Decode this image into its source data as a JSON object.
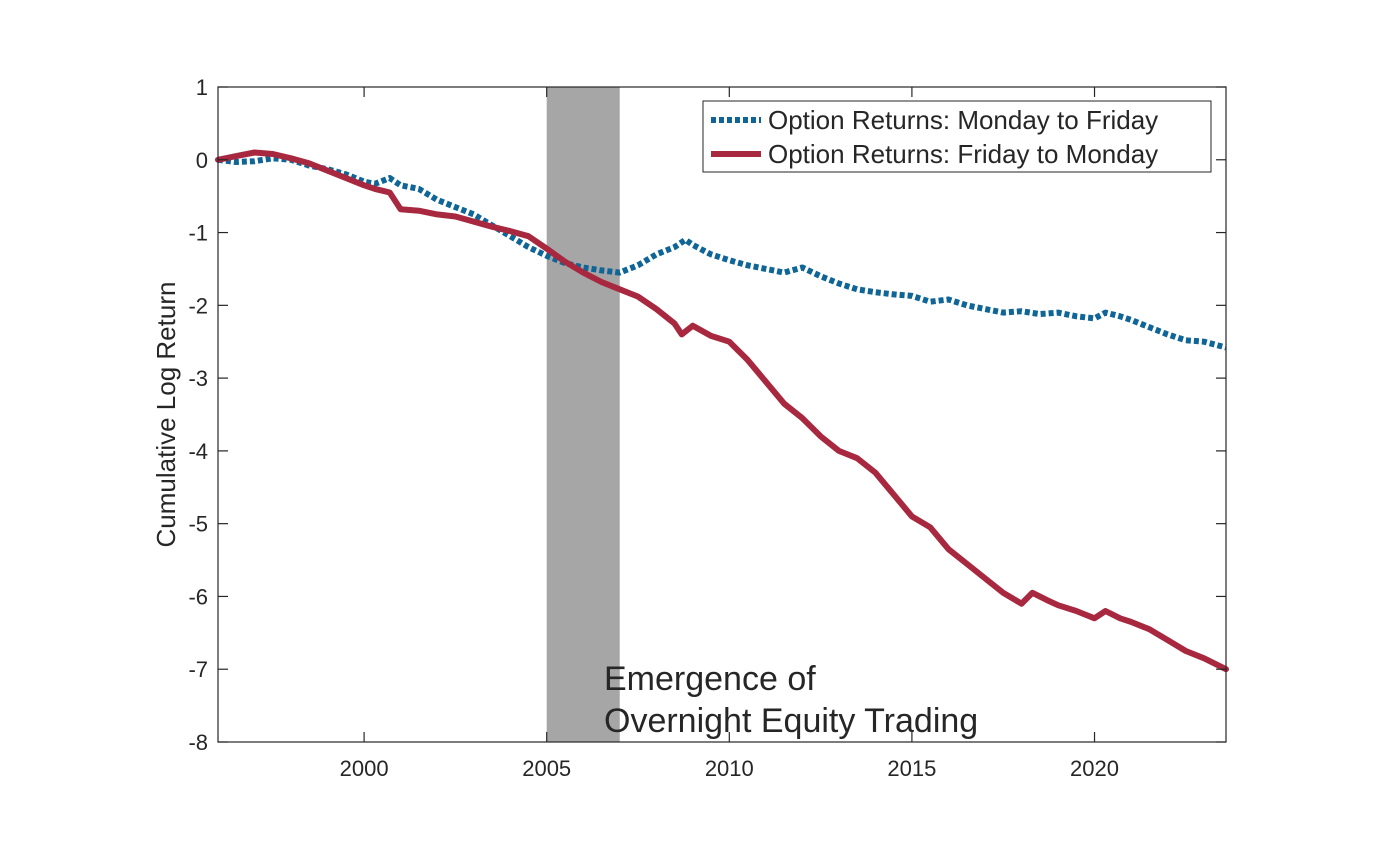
{
  "chart_data": {
    "type": "line",
    "title": "",
    "xlabel": "",
    "ylabel": "Cumulative Log Return",
    "xlim": [
      1996.0,
      2023.6
    ],
    "ylim": [
      -8,
      1
    ],
    "x_ticks": [
      2000,
      2005,
      2010,
      2015,
      2020
    ],
    "x_tick_labels": [
      "2000",
      "2005",
      "2010",
      "2015",
      "2020"
    ],
    "y_ticks": [
      1,
      0,
      -1,
      -2,
      -3,
      -4,
      -5,
      -6,
      -7,
      -8
    ],
    "y_tick_labels": [
      "1",
      "0",
      "-1",
      "-2",
      "-3",
      "-4",
      "-5",
      "-6",
      "-7",
      "-8"
    ],
    "grid": false,
    "legend_position": "top-right",
    "shaded_region": {
      "x_start": 2005.0,
      "x_end": 2007.0,
      "color": "#a6a6a6"
    },
    "annotation": {
      "lines": [
        "Emergence of",
        "Overnight Equity Trading"
      ],
      "x": 2006.6,
      "y": -7.45
    },
    "series": [
      {
        "name": "Option Returns: Monday to Friday",
        "color": "#0e6596",
        "style": "dotted",
        "x": [
          1996.0,
          1996.5,
          1997.0,
          1997.5,
          1998.0,
          1998.5,
          1999.0,
          1999.5,
          2000.0,
          2000.3,
          2000.7,
          2001.0,
          2001.5,
          2002.0,
          2002.5,
          2003.0,
          2003.5,
          2004.0,
          2004.5,
          2005.0,
          2005.5,
          2006.0,
          2006.5,
          2007.0,
          2007.5,
          2008.0,
          2008.5,
          2008.8,
          2009.0,
          2009.5,
          2010.0,
          2010.5,
          2011.0,
          2011.5,
          2012.0,
          2012.5,
          2013.0,
          2013.5,
          2014.0,
          2014.5,
          2015.0,
          2015.5,
          2016.0,
          2016.5,
          2017.0,
          2017.5,
          2018.0,
          2018.5,
          2019.0,
          2019.5,
          2020.0,
          2020.3,
          2020.7,
          2021.0,
          2021.5,
          2022.0,
          2022.5,
          2023.0,
          2023.6
        ],
        "values": [
          0.0,
          -0.03,
          -0.02,
          0.02,
          0.0,
          -0.08,
          -0.13,
          -0.2,
          -0.3,
          -0.33,
          -0.25,
          -0.35,
          -0.4,
          -0.55,
          -0.65,
          -0.75,
          -0.9,
          -1.05,
          -1.2,
          -1.32,
          -1.42,
          -1.48,
          -1.52,
          -1.55,
          -1.45,
          -1.3,
          -1.2,
          -1.1,
          -1.17,
          -1.3,
          -1.38,
          -1.45,
          -1.5,
          -1.55,
          -1.48,
          -1.6,
          -1.7,
          -1.78,
          -1.82,
          -1.85,
          -1.87,
          -1.95,
          -1.92,
          -2.0,
          -2.05,
          -2.1,
          -2.08,
          -2.12,
          -2.1,
          -2.15,
          -2.18,
          -2.1,
          -2.15,
          -2.2,
          -2.3,
          -2.4,
          -2.48,
          -2.5,
          -2.58
        ]
      },
      {
        "name": "Option Returns: Friday to Monday",
        "color": "#a8293f",
        "style": "solid",
        "x": [
          1996.0,
          1996.5,
          1997.0,
          1997.5,
          1998.0,
          1998.5,
          1999.0,
          1999.5,
          2000.0,
          2000.3,
          2000.7,
          2001.0,
          2001.5,
          2002.0,
          2002.5,
          2003.0,
          2003.5,
          2004.0,
          2004.5,
          2005.0,
          2005.5,
          2006.0,
          2006.5,
          2007.0,
          2007.5,
          2008.0,
          2008.5,
          2008.7,
          2009.0,
          2009.5,
          2010.0,
          2010.5,
          2011.0,
          2011.5,
          2012.0,
          2012.5,
          2013.0,
          2013.5,
          2014.0,
          2014.5,
          2015.0,
          2015.5,
          2016.0,
          2016.5,
          2017.0,
          2017.5,
          2018.0,
          2018.3,
          2018.7,
          2019.0,
          2019.5,
          2020.0,
          2020.3,
          2020.7,
          2021.0,
          2021.5,
          2022.0,
          2022.5,
          2023.0,
          2023.6
        ],
        "values": [
          0.0,
          0.05,
          0.1,
          0.08,
          0.02,
          -0.05,
          -0.15,
          -0.25,
          -0.35,
          -0.4,
          -0.45,
          -0.68,
          -0.7,
          -0.75,
          -0.78,
          -0.85,
          -0.92,
          -0.98,
          -1.05,
          -1.22,
          -1.4,
          -1.55,
          -1.68,
          -1.78,
          -1.88,
          -2.05,
          -2.25,
          -2.4,
          -2.28,
          -2.42,
          -2.5,
          -2.75,
          -3.05,
          -3.35,
          -3.55,
          -3.8,
          -4.0,
          -4.1,
          -4.3,
          -4.6,
          -4.9,
          -5.05,
          -5.35,
          -5.55,
          -5.75,
          -5.95,
          -6.1,
          -5.95,
          -6.05,
          -6.12,
          -6.2,
          -6.3,
          -6.2,
          -6.3,
          -6.35,
          -6.45,
          -6.6,
          -6.75,
          -6.85,
          -7.0
        ]
      }
    ]
  }
}
